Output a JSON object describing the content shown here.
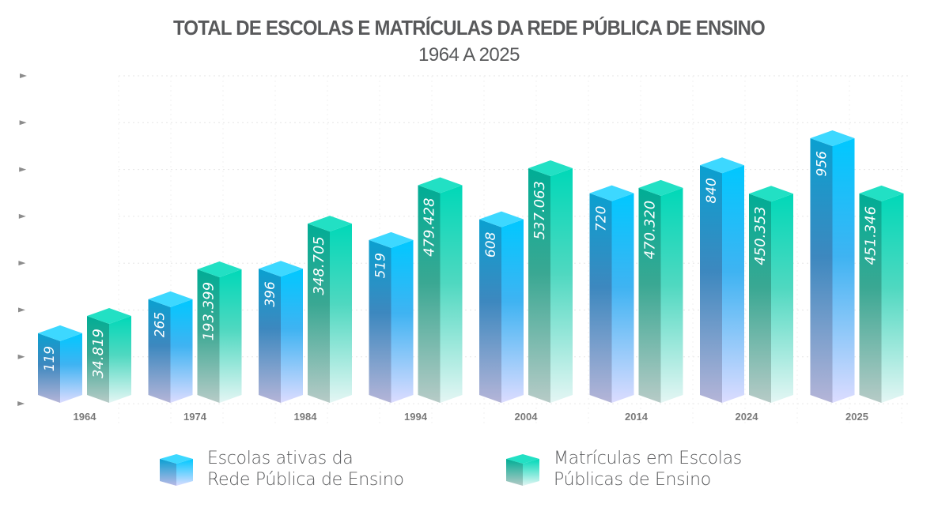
{
  "chart_data": {
    "type": "bar",
    "title": "TOTAL DE ESCOLAS E MATRÍCULAS DA REDE PÚBLICA DE ENSINO",
    "subtitle": "1964 A 2025",
    "xlabel": "",
    "ylabel": "",
    "grid": true,
    "legend_position": "bottom",
    "categories": [
      "1964",
      "1974",
      "1984",
      "1994",
      "2004",
      "2014",
      "2024",
      "2025"
    ],
    "series": [
      {
        "name": "Escolas ativas da Rede Pública de Ensino",
        "color_top": "#3dd8ff",
        "color_front": "#00c8ff",
        "color_side": "#0aa0d0",
        "color_fade": "#dcdcff",
        "values": [
          119,
          265,
          396,
          519,
          608,
          720,
          840,
          956
        ],
        "labels": [
          "119",
          "265",
          "396",
          "519",
          "608",
          "720",
          "840",
          "956"
        ]
      },
      {
        "name": "Matrículas em Escolas Públicas de Ensino",
        "color_top": "#22e0c4",
        "color_front": "#00d8b8",
        "color_side": "#00ad95",
        "color_fade": "#e4f6f4",
        "values": [
          34819,
          193399,
          348705,
          479428,
          537063,
          470320,
          450353,
          451346
        ],
        "labels": [
          "34.819",
          "193.399",
          "348.705",
          "479.428",
          "537.063",
          "470.320",
          "450.353",
          "451.346"
        ]
      }
    ],
    "y_ticks_count": 8,
    "y_tick_labels": []
  },
  "legend": [
    {
      "line1": "Escolas ativas da",
      "line2": "Rede Pública de Ensino"
    },
    {
      "line1": "Matrículas em Escolas",
      "line2": "Públicas de Ensino"
    }
  ]
}
